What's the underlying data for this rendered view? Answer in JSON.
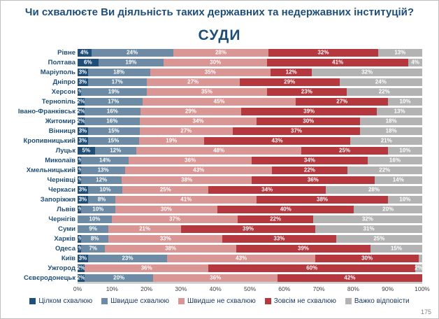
{
  "slide": {
    "title": "Чи схвалюєте Ви діяльність таких державних та недержавних інституцій?",
    "page_number": "175"
  },
  "chart_data": {
    "type": "bar",
    "stacked": true,
    "orientation": "horizontal",
    "title": "СУДИ",
    "xlabel": "",
    "ylabel": "",
    "xlim": [
      0,
      100
    ],
    "grid": false,
    "legend_position": "bottom",
    "x_axis": {
      "ticks": [
        "0%",
        "10%",
        "20%",
        "30%",
        "40%",
        "50%",
        "60%",
        "70%",
        "80%",
        "90%",
        "100%"
      ]
    },
    "legend": [
      {
        "label": "Цілком схвалюю",
        "color": "#1F4E79"
      },
      {
        "label": "Швидше схвалюю",
        "color": "#6D8BA4"
      },
      {
        "label": "Швидше не схвалюю",
        "color": "#DA9694"
      },
      {
        "label": "Зовсім не схвалюю",
        "color": "#B5383F"
      },
      {
        "label": "Важко відповісти",
        "color": "#B3B3B3"
      }
    ],
    "rows": [
      {
        "city": "Рівне",
        "values": [
          4,
          24,
          28,
          32,
          13
        ],
        "labels": [
          "4%",
          "24%",
          "28%",
          "32%",
          "13%"
        ]
      },
      {
        "city": "Полтава",
        "values": [
          6,
          19,
          30,
          41,
          4
        ],
        "labels": [
          "6%",
          "19%",
          "30%",
          "41%",
          "4%"
        ]
      },
      {
        "city": "Маріуполь",
        "values": [
          3,
          18,
          35,
          12,
          32
        ],
        "labels": [
          "3%",
          "18%",
          "35%",
          "12%",
          "32%"
        ]
      },
      {
        "city": "Дніпро",
        "values": [
          3,
          17,
          27,
          29,
          24
        ],
        "labels": [
          "3%",
          "17%",
          "27%",
          "29%",
          "24%"
        ]
      },
      {
        "city": "Херсон",
        "values": [
          1,
          19,
          35,
          23,
          22
        ],
        "labels": [
          "1%",
          "19%",
          "35%",
          "23%",
          "22%"
        ]
      },
      {
        "city": "Тернопіль",
        "values": [
          2,
          17,
          45,
          27,
          10
        ],
        "labels": [
          "2%",
          "17%",
          "45%",
          "27%",
          "10%"
        ]
      },
      {
        "city": "Івано-Франківськ",
        "values": [
          2,
          16,
          29,
          39,
          13
        ],
        "labels": [
          "2%",
          "16%",
          "29%",
          "39%",
          "13%"
        ]
      },
      {
        "city": "Житомир",
        "values": [
          2,
          16,
          34,
          30,
          18
        ],
        "labels": [
          "2%",
          "16%",
          "34%",
          "30%",
          "18%"
        ]
      },
      {
        "city": "Вінниця",
        "values": [
          3,
          15,
          27,
          37,
          18
        ],
        "labels": [
          "3%",
          "15%",
          "27%",
          "37%",
          "18%"
        ]
      },
      {
        "city": "Кропивницький",
        "values": [
          3,
          15,
          19,
          43,
          21
        ],
        "labels": [
          "3%",
          "15%",
          "19%",
          "43%",
          "21%"
        ]
      },
      {
        "city": "Луцьк",
        "values": [
          5,
          12,
          48,
          25,
          10
        ],
        "labels": [
          "5%",
          "12%",
          "48%",
          "25%",
          "10%"
        ]
      },
      {
        "city": "Миколаїв",
        "values": [
          1,
          14,
          36,
          34,
          16
        ],
        "labels": [
          "1%",
          "14%",
          "36%",
          "34%",
          "16%"
        ]
      },
      {
        "city": "Хмельницький",
        "values": [
          1,
          13,
          43,
          22,
          22
        ],
        "labels": [
          "1%",
          "13%",
          "43%",
          "22%",
          "22%"
        ]
      },
      {
        "city": "Чернівці",
        "values": [
          1,
          12,
          38,
          36,
          14
        ],
        "labels": [
          "1%",
          "12%",
          "38%",
          "36%",
          "14%"
        ]
      },
      {
        "city": "Черкаси",
        "values": [
          3,
          10,
          25,
          34,
          28
        ],
        "labels": [
          "3%",
          "10%",
          "25%",
          "34%",
          "28%"
        ]
      },
      {
        "city": "Запоріжжя",
        "values": [
          3,
          8,
          41,
          38,
          10
        ],
        "labels": [
          "3%",
          "8%",
          "41%",
          "38%",
          "10%"
        ]
      },
      {
        "city": "Львів",
        "values": [
          1,
          10,
          30,
          40,
          20
        ],
        "labels": [
          "1%",
          "10%",
          "30%",
          "40%",
          "20%"
        ]
      },
      {
        "city": "Чернігів",
        "values": [
          0,
          10,
          37,
          22,
          32
        ],
        "labels": [
          "",
          "10%",
          "37%",
          "22%",
          "32%"
        ]
      },
      {
        "city": "Суми",
        "values": [
          0,
          9,
          21,
          39,
          31
        ],
        "labels": [
          "",
          "9%",
          "21%",
          "39%",
          "31%"
        ]
      },
      {
        "city": "Харків",
        "values": [
          1,
          8,
          33,
          33,
          25
        ],
        "labels": [
          "1%",
          "8%",
          "33%",
          "33%",
          "25%"
        ]
      },
      {
        "city": "Одеса",
        "values": [
          1,
          7,
          38,
          39,
          15
        ],
        "labels": [
          "1%",
          "7%",
          "38%",
          "39%",
          "15%"
        ]
      },
      {
        "city": "Київ",
        "values": [
          3,
          23,
          43,
          30,
          1
        ],
        "labels": [
          "3%",
          "23%",
          "43%",
          "30%",
          ""
        ]
      },
      {
        "city": "Ужгород",
        "values": [
          2,
          0,
          36,
          60,
          2
        ],
        "labels": [
          "2%",
          "",
          "36%",
          "60%",
          "2%"
        ]
      },
      {
        "city": "Сєвєродонецьк",
        "values": [
          2,
          20,
          36,
          42,
          0
        ],
        "labels": [
          "2%",
          "20%",
          "36%",
          "42%",
          ""
        ]
      }
    ]
  }
}
